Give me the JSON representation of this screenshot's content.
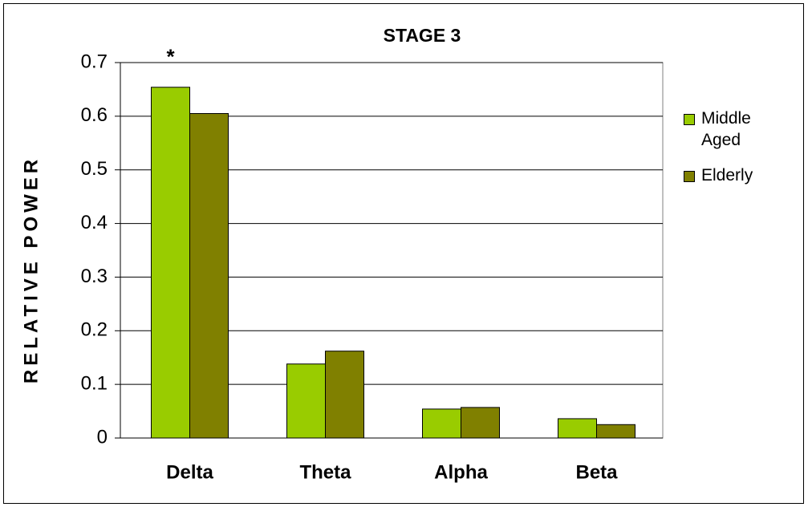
{
  "chart_data": {
    "type": "bar",
    "title": "STAGE 3",
    "y_label": "RELATIVE POWER",
    "categories": [
      "Delta",
      "Theta",
      "Alpha",
      "Beta"
    ],
    "series": [
      {
        "name": "Middle Aged",
        "color": "#99cc00",
        "values": [
          0.654,
          0.138,
          0.054,
          0.036
        ]
      },
      {
        "name": "Elderly",
        "color": "#808000",
        "values": [
          0.605,
          0.162,
          0.057,
          0.025
        ]
      }
    ],
    "annotations": [
      {
        "text": "*",
        "category": 0,
        "series": 0
      }
    ],
    "ylim": [
      0,
      0.7
    ],
    "yticks": [
      0,
      0.1,
      0.2,
      0.3,
      0.4,
      0.5,
      0.6,
      0.7
    ],
    "grid": true,
    "legend": "right"
  }
}
